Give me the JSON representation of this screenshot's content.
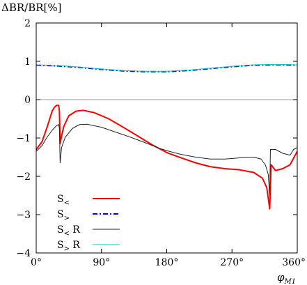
{
  "chart_data": {
    "type": "line",
    "ylabel": "ΔBR/BR[%]",
    "xlabel": "φ_M1",
    "xlim": [
      0,
      360
    ],
    "ylim": [
      -4,
      2
    ],
    "xticks": [
      0,
      90,
      180,
      270,
      360
    ],
    "xtick_labels": [
      "0°",
      "90°",
      "180°",
      "270°",
      "360°"
    ],
    "yticks": [
      -4,
      -3,
      -2,
      -1,
      0,
      1,
      2
    ],
    "ytick_labels": [
      "−4",
      "−3",
      "−2",
      "−1",
      "0",
      "1",
      "2"
    ],
    "grid": false,
    "zero_line": true,
    "legend_position": "bottom-left",
    "series": [
      {
        "name": "S<",
        "color": "#ff0000",
        "dash": "solid",
        "width": 2,
        "points": [
          [
            0,
            -1.3
          ],
          [
            8,
            -1.1
          ],
          [
            15,
            -0.72
          ],
          [
            22,
            -0.3
          ],
          [
            25,
            -0.2
          ],
          [
            28,
            -0.15
          ],
          [
            31,
            -0.15
          ],
          [
            32,
            -0.3
          ],
          [
            33,
            -1.15
          ],
          [
            35,
            -0.95
          ],
          [
            38,
            -0.7
          ],
          [
            45,
            -0.42
          ],
          [
            55,
            -0.3
          ],
          [
            65,
            -0.28
          ],
          [
            80,
            -0.34
          ],
          [
            100,
            -0.5
          ],
          [
            120,
            -0.72
          ],
          [
            140,
            -0.95
          ],
          [
            160,
            -1.18
          ],
          [
            180,
            -1.38
          ],
          [
            200,
            -1.52
          ],
          [
            220,
            -1.65
          ],
          [
            240,
            -1.75
          ],
          [
            260,
            -1.8
          ],
          [
            280,
            -1.83
          ],
          [
            300,
            -1.9
          ],
          [
            312,
            -2.05
          ],
          [
            318,
            -2.3
          ],
          [
            322,
            -2.85
          ],
          [
            324,
            -1.7
          ],
          [
            330,
            -1.85
          ],
          [
            340,
            -1.8
          ],
          [
            350,
            -1.7
          ],
          [
            360,
            -1.35
          ]
        ]
      },
      {
        "name": "S>",
        "color": "#0000cc",
        "dash": "dashdot",
        "width": 2,
        "points": [
          [
            0,
            0.9
          ],
          [
            30,
            0.88
          ],
          [
            60,
            0.84
          ],
          [
            90,
            0.79
          ],
          [
            120,
            0.75
          ],
          [
            150,
            0.73
          ],
          [
            180,
            0.73
          ],
          [
            210,
            0.76
          ],
          [
            240,
            0.81
          ],
          [
            270,
            0.86
          ],
          [
            300,
            0.9
          ],
          [
            330,
            0.91
          ],
          [
            360,
            0.9
          ]
        ]
      },
      {
        "name": "S< R",
        "color": "#222222",
        "dash": "solid",
        "width": 1,
        "points": [
          [
            0,
            -1.35
          ],
          [
            8,
            -1.2
          ],
          [
            15,
            -0.98
          ],
          [
            22,
            -0.8
          ],
          [
            28,
            -0.68
          ],
          [
            31,
            -0.65
          ],
          [
            32,
            -0.75
          ],
          [
            33,
            -1.65
          ],
          [
            35,
            -1.25
          ],
          [
            40,
            -0.98
          ],
          [
            50,
            -0.75
          ],
          [
            60,
            -0.65
          ],
          [
            70,
            -0.64
          ],
          [
            90,
            -0.72
          ],
          [
            110,
            -0.85
          ],
          [
            130,
            -0.98
          ],
          [
            150,
            -1.12
          ],
          [
            170,
            -1.27
          ],
          [
            180,
            -1.33
          ],
          [
            200,
            -1.43
          ],
          [
            220,
            -1.5
          ],
          [
            240,
            -1.55
          ],
          [
            260,
            -1.55
          ],
          [
            280,
            -1.52
          ],
          [
            300,
            -1.5
          ],
          [
            310,
            -1.55
          ],
          [
            316,
            -1.7
          ],
          [
            320,
            -1.95
          ],
          [
            322,
            -2.5
          ],
          [
            323,
            -1.3
          ],
          [
            330,
            -1.3
          ],
          [
            340,
            -1.4
          ],
          [
            350,
            -1.45
          ],
          [
            355,
            -1.3
          ],
          [
            360,
            -1.25
          ]
        ]
      },
      {
        "name": "S> R",
        "color": "#00cccc",
        "dash": "solid",
        "width": 1,
        "points": [
          [
            0,
            0.91
          ],
          [
            30,
            0.89
          ],
          [
            60,
            0.85
          ],
          [
            90,
            0.8
          ],
          [
            120,
            0.76
          ],
          [
            150,
            0.74
          ],
          [
            180,
            0.74
          ],
          [
            210,
            0.77
          ],
          [
            240,
            0.82
          ],
          [
            270,
            0.87
          ],
          [
            300,
            0.91
          ],
          [
            330,
            0.92
          ],
          [
            360,
            0.91
          ]
        ]
      }
    ],
    "legend": [
      {
        "label": "S",
        "sub": "<",
        "suffix": ""
      },
      {
        "label": "S",
        "sub": ">",
        "suffix": ""
      },
      {
        "label": "S",
        "sub": "<",
        "suffix": " R"
      },
      {
        "label": "S",
        "sub": ">",
        "suffix": " R"
      }
    ]
  }
}
